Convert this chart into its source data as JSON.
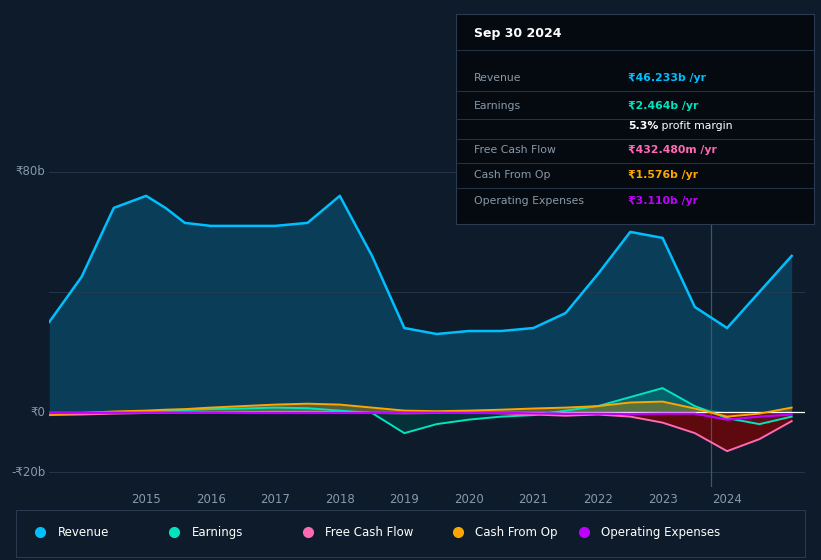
{
  "background_color": "#0d1b2a",
  "plot_bg_color": "#0d1b2a",
  "title_box": {
    "date": "Sep 30 2024",
    "rows": [
      {
        "label": "Revenue",
        "value": "₹46.233b /yr",
        "value_color": "#00bfff"
      },
      {
        "label": "Earnings",
        "value": "₹2.464b /yr",
        "value_color": "#00e5c0"
      },
      {
        "label": "",
        "value": "5.3% profit margin",
        "value_color": "#ffffff"
      },
      {
        "label": "Free Cash Flow",
        "value": "₹432.480m /yr",
        "value_color": "#ff69b4"
      },
      {
        "label": "Cash From Op",
        "value": "₹1.576b /yr",
        "value_color": "#ffa500"
      },
      {
        "label": "Operating Expenses",
        "value": "₹3.110b /yr",
        "value_color": "#bf00ff"
      }
    ]
  },
  "ylabel_top": "₹80b",
  "ylabel_zero": "₹0",
  "ylabel_neg": "-₹20b",
  "ylim": [
    -25,
    85
  ],
  "xlim": [
    2013.5,
    2025.2
  ],
  "xticks": [
    2015,
    2016,
    2017,
    2018,
    2019,
    2020,
    2021,
    2022,
    2023,
    2024
  ],
  "legend": [
    {
      "label": "Revenue",
      "color": "#00bfff"
    },
    {
      "label": "Earnings",
      "color": "#00e5c0"
    },
    {
      "label": "Free Cash Flow",
      "color": "#ff69b4"
    },
    {
      "label": "Cash From Op",
      "color": "#ffa500"
    },
    {
      "label": "Operating Expenses",
      "color": "#bf00ff"
    }
  ],
  "series": {
    "years": [
      2013.5,
      2014.0,
      2014.5,
      2015.0,
      2015.3,
      2015.6,
      2016.0,
      2016.5,
      2017.0,
      2017.5,
      2018.0,
      2018.5,
      2019.0,
      2019.5,
      2020.0,
      2020.5,
      2021.0,
      2021.5,
      2022.0,
      2022.5,
      2023.0,
      2023.5,
      2024.0,
      2024.5,
      2025.0
    ],
    "revenue": [
      30,
      45,
      68,
      72,
      68,
      63,
      62,
      62,
      62,
      63,
      72,
      52,
      28,
      26,
      27,
      27,
      28,
      33,
      46,
      60,
      58,
      35,
      28,
      40,
      52
    ],
    "earnings": [
      -0.5,
      -0.3,
      0,
      0.3,
      0.5,
      0.7,
      1.0,
      1.2,
      1.5,
      1.3,
      0.5,
      -0.3,
      -7,
      -4,
      -2.5,
      -1.5,
      -1,
      0.5,
      2,
      5,
      8,
      2,
      -2,
      -4,
      -1.5
    ],
    "free_cash_flow": [
      -1.0,
      -0.8,
      -0.5,
      -0.3,
      -0.2,
      -0.1,
      -0.1,
      0.0,
      0.1,
      0.1,
      0.0,
      -0.3,
      -0.4,
      -0.3,
      -0.2,
      -0.4,
      -0.8,
      -1.2,
      -0.8,
      -1.5,
      -3.5,
      -7,
      -13,
      -9,
      -3
    ],
    "cash_from_op": [
      -0.8,
      -0.3,
      0.2,
      0.5,
      0.8,
      1.0,
      1.5,
      2.0,
      2.5,
      2.8,
      2.5,
      1.5,
      0.5,
      0.3,
      0.5,
      0.8,
      1.2,
      1.5,
      2.0,
      3.2,
      3.5,
      1.2,
      -1.5,
      -0.5,
      1.5
    ],
    "op_expenses": [
      -0.3,
      -0.2,
      -0.2,
      -0.2,
      -0.2,
      -0.2,
      -0.2,
      -0.3,
      -0.3,
      -0.3,
      -0.3,
      -0.3,
      -0.2,
      -0.2,
      -0.3,
      -0.3,
      -0.4,
      -0.5,
      -0.5,
      -0.6,
      -0.5,
      -0.5,
      -2.5,
      -1.5,
      -0.8
    ]
  }
}
